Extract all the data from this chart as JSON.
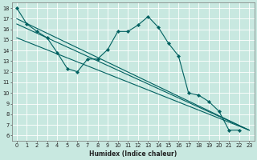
{
  "bg_color": "#c8e8e0",
  "grid_color": "#ffffff",
  "line_color": "#006060",
  "xlabel": "Humidex (Indice chaleur)",
  "xlim": [
    -0.5,
    23.5
  ],
  "ylim": [
    5.5,
    18.5
  ],
  "yticks": [
    6,
    7,
    8,
    9,
    10,
    11,
    12,
    13,
    14,
    15,
    16,
    17,
    18
  ],
  "xticks": [
    0,
    1,
    2,
    3,
    4,
    5,
    6,
    7,
    8,
    9,
    10,
    11,
    12,
    13,
    14,
    15,
    16,
    17,
    18,
    19,
    20,
    21,
    22,
    23
  ],
  "line1_x": [
    0,
    1,
    2,
    3,
    4,
    5,
    6,
    7,
    8,
    9,
    10,
    11,
    12,
    13,
    14,
    15,
    16,
    17,
    18,
    19,
    20,
    21,
    22
  ],
  "line1_y": [
    18,
    16.5,
    15.8,
    15.2,
    13.8,
    12.3,
    12.0,
    13.2,
    13.2,
    14.1,
    15.8,
    15.8,
    16.4,
    17.2,
    16.2,
    14.7,
    13.5,
    10.0,
    9.8,
    9.2,
    8.3,
    6.5,
    6.5
  ],
  "line2_x": [
    0,
    23
  ],
  "line2_y": [
    17.0,
    6.5
  ],
  "line3_x": [
    0,
    23
  ],
  "line3_y": [
    16.5,
    6.5
  ],
  "line4_x": [
    0,
    23
  ],
  "line4_y": [
    15.2,
    6.5
  ],
  "xlabel_fontsize": 5.5,
  "tick_fontsize": 4.8,
  "lw": 0.8,
  "marker_size": 2.2
}
